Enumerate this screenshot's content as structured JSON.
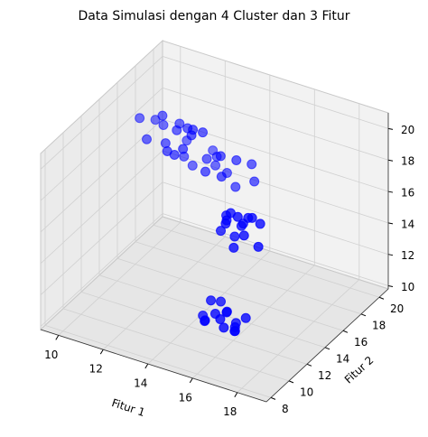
{
  "chart_data": {
    "type": "scatter3d",
    "title": "Data Simulasi dengan 4 Cluster dan 3 Fitur",
    "xlabel": "Fitur 1",
    "ylabel": "Fitur 2",
    "color": "#0000ff",
    "grid": true,
    "xlim": [
      9.2,
      19.3
    ],
    "ylim": [
      7.5,
      21
    ],
    "zlim": [
      9.8,
      21
    ],
    "xticks": [
      10,
      12,
      14,
      16,
      18
    ],
    "yticks": [
      8,
      10,
      12,
      14,
      16,
      18,
      20
    ],
    "zticks": [
      10,
      12,
      14,
      16,
      18,
      20
    ],
    "x": [
      12.1,
      13.5,
      14.2,
      12.8,
      13.9,
      11.9,
      14.6,
      13.0,
      12.5,
      14.0,
      13.3,
      12.2,
      14.4,
      13.7,
      12.9,
      11.2,
      12.5,
      11.8,
      12.9,
      10.9,
      12.2,
      13.1,
      11.5,
      12.7,
      11.9,
      10.6,
      12.4,
      11.3,
      13.0,
      12.1,
      15.2,
      16.1,
      15.7,
      16.4,
      15.0,
      15.9,
      16.6,
      15.4,
      16.2,
      15.6,
      16.0,
      15.3,
      16.8,
      15.8,
      15.5,
      14.9,
      15.6,
      16.1,
      15.2,
      15.9,
      14.6,
      16.4,
      15.4,
      15.8,
      15.0,
      16.2,
      15.5,
      14.8,
      15.7,
      16.0
    ],
    "y": [
      16.2,
      17.5,
      16.8,
      18.1,
      15.9,
      17.0,
      17.8,
      16.5,
      18.4,
      17.2,
      15.6,
      16.9,
      18.0,
      16.3,
      17.7,
      14.3,
      15.6,
      14.9,
      15.2,
      16.0,
      14.1,
      15.8,
      15.3,
      14.6,
      16.2,
      15.0,
      14.4,
      15.9,
      14.8,
      15.4,
      12.6,
      13.4,
      12.9,
      13.1,
      13.7,
      12.3,
      13.5,
      13.2,
      12.7,
      13.9,
      12.5,
      13.0,
      12.8,
      13.6,
      12.4,
      11.6,
      12.3,
      11.9,
      12.6,
      11.2,
      12.1,
      12.4,
      11.5,
      12.8,
      12.0,
      11.7,
      12.5,
      11.8,
      11.3,
      12.2
    ],
    "z": [
      17.5,
      16.4,
      17.9,
      16.8,
      17.2,
      18.0,
      16.2,
      17.6,
      16.9,
      15.9,
      17.4,
      16.6,
      17.1,
      18.2,
      16.5,
      19.2,
      19.8,
      18.9,
      20.1,
      19.4,
      19.0,
      19.7,
      20.3,
      19.1,
      19.5,
      19.9,
      18.7,
      19.3,
      20.0,
      19.6,
      16.1,
      16.9,
      15.8,
      17.2,
      16.4,
      15.5,
      16.7,
      17.0,
      16.2,
      15.9,
      17.4,
      16.6,
      15.7,
      16.3,
      16.8,
      10.8,
      11.3,
      10.5,
      11.6,
      11.0,
      10.7,
      11.2,
      11.5,
      10.4,
      11.9,
      10.9,
      11.1,
      10.6,
      11.4,
      10.3
    ]
  }
}
